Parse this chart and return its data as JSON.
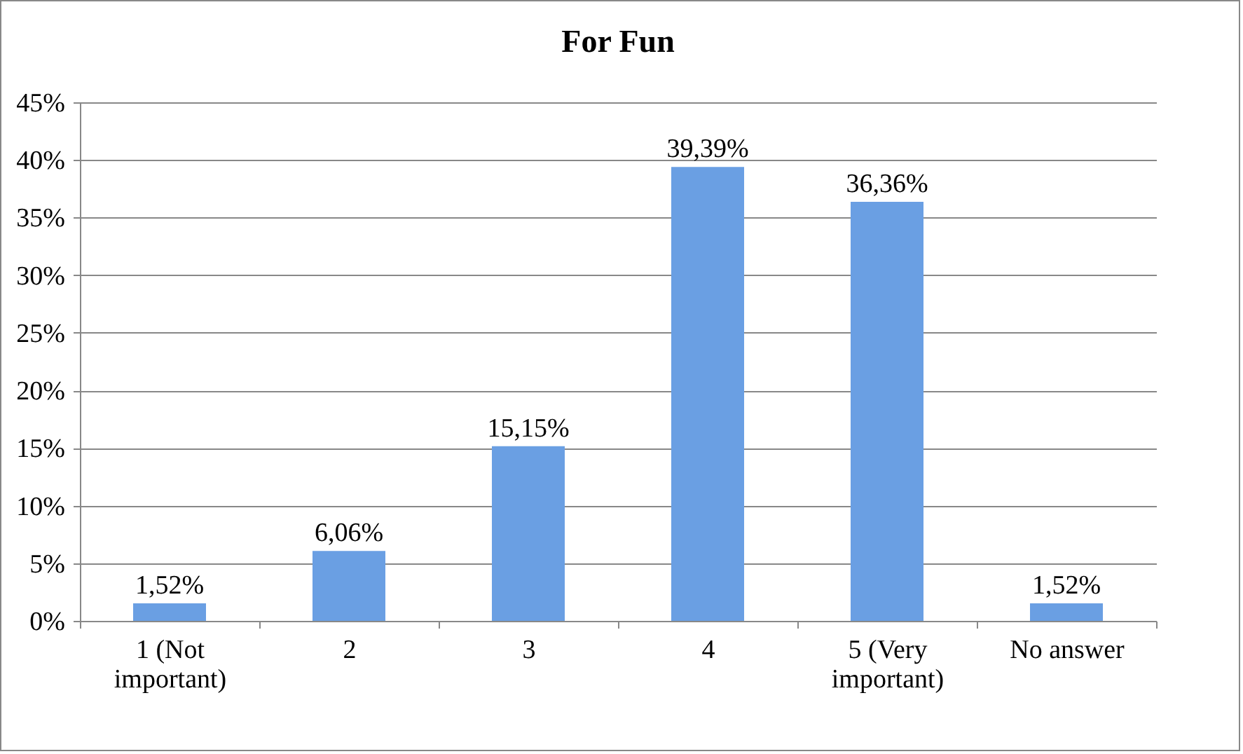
{
  "chart_data": {
    "type": "bar",
    "title": "For Fun",
    "categories": [
      "1 (Not\nimportant)",
      "2",
      "3",
      "4",
      "5 (Very\nimportant)",
      "No answer"
    ],
    "values": [
      1.52,
      6.06,
      15.15,
      39.39,
      36.36,
      1.52
    ],
    "value_labels": [
      "1,52%",
      "6,06%",
      "15,15%",
      "39,39%",
      "36,36%",
      "1,52%"
    ],
    "color": "#6a9fe3",
    "ylim": [
      0,
      45
    ],
    "yticks": [
      {
        "value": 0,
        "label": "0%"
      },
      {
        "value": 5,
        "label": "5%"
      },
      {
        "value": 10,
        "label": "10%"
      },
      {
        "value": 15,
        "label": "15%"
      },
      {
        "value": 20,
        "label": "20%"
      },
      {
        "value": 25,
        "label": "25%"
      },
      {
        "value": 30,
        "label": "30%"
      },
      {
        "value": 35,
        "label": "35%"
      },
      {
        "value": 40,
        "label": "40%"
      },
      {
        "value": 45,
        "label": "45%"
      }
    ],
    "grid": true
  }
}
